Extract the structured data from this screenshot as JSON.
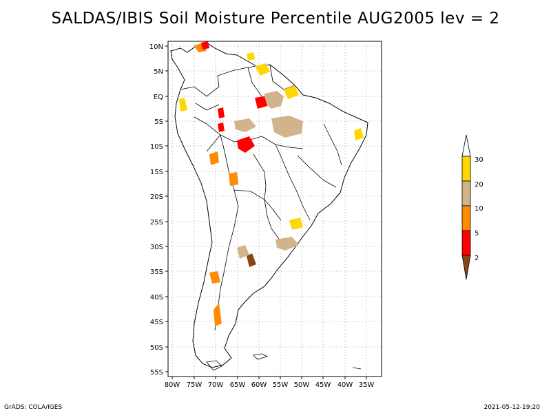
{
  "title": "SALDAS/IBIS Soil Moisture Percentile AUG2005 lev = 2",
  "map": {
    "lat_labels": [
      "10N",
      "5N",
      "EQ",
      "5S",
      "10S",
      "15S",
      "20S",
      "25S",
      "30S",
      "35S",
      "40S",
      "45S",
      "50S",
      "55S"
    ],
    "lon_labels": [
      "80W",
      "75W",
      "70W",
      "65W",
      "60W",
      "55W",
      "50W",
      "45W",
      "40W",
      "35W"
    ],
    "grid": true,
    "region": "South America"
  },
  "legend": {
    "labels": [
      "2",
      "5",
      "10",
      "20",
      "30"
    ],
    "colors": [
      "#8b4513",
      "#ff0000",
      "#ff8c00",
      "#d2b48c",
      "#ffd700",
      "#ffffff"
    ]
  },
  "footer": {
    "left": "GrADS: COLA/IGES",
    "right": "2021-05-12-19:20"
  }
}
